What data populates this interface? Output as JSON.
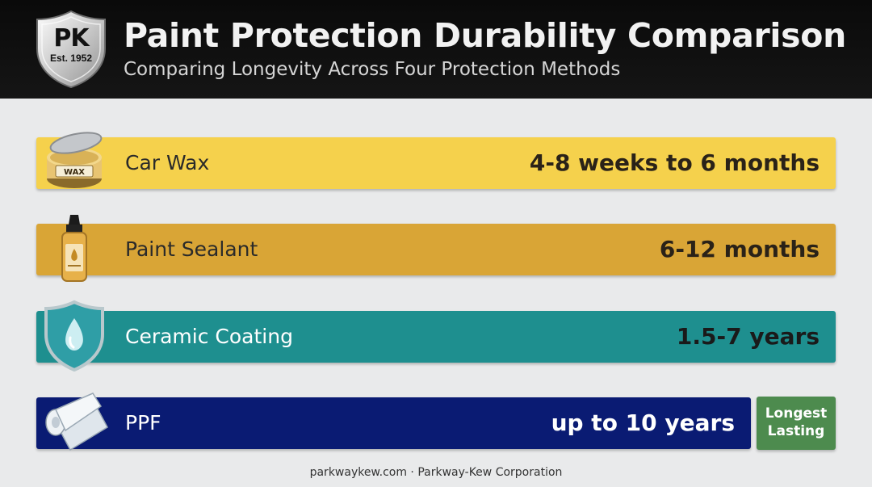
{
  "header": {
    "title": "Paint Protection Durability Comparison",
    "subtitle": "Comparing Longevity Across Four Protection Methods",
    "logo": {
      "monogram": "PK",
      "established": "Est. 1952"
    }
  },
  "chart_data": {
    "type": "bar",
    "title": "Paint Protection Durability Comparison",
    "subtitle": "Comparing Longevity Across Four Protection Methods",
    "categories": [
      "Car Wax",
      "Paint Sealant",
      "Ceramic Coating",
      "PPF"
    ],
    "value_labels": [
      "4-8 weeks to 6 months",
      "6-12 months",
      "1.5-7 years",
      "up to 10 years"
    ],
    "colors": [
      "#f5d14c",
      "#d9a536",
      "#1e8f8f",
      "#0a1b73"
    ],
    "icons": [
      "wax-tin-icon",
      "sealant-bottle-icon",
      "water-drop-shield-icon",
      "film-roll-icon"
    ],
    "highlight": {
      "category": "PPF",
      "badge": "Longest Lasting",
      "color": "#4d8b4e"
    }
  },
  "footer": {
    "text": "parkwaykew.com · Parkway-Kew Corporation"
  }
}
